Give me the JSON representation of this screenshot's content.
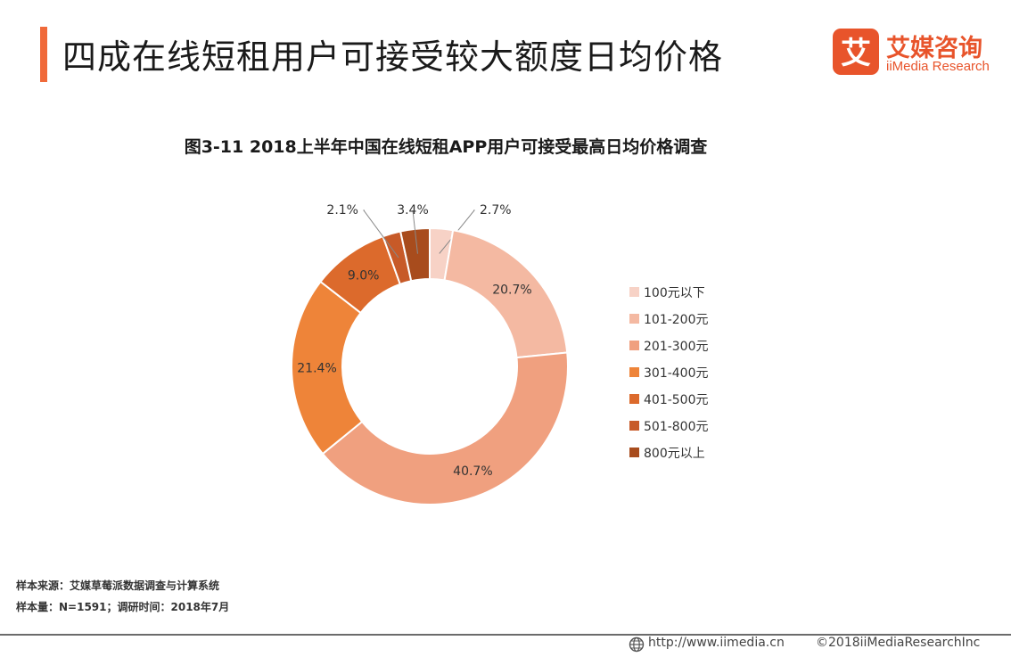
{
  "header": {
    "title": "四成在线短租用户可接受较大额度日均价格",
    "brand": "艾媒咨询",
    "brand_en": "iiMedia Research",
    "logo_glyph": "艾",
    "accent_color": "#f06a3a",
    "brand_color": "#e8542b"
  },
  "chart_data": {
    "type": "pie",
    "style": "donut",
    "title": "图3-11 2018上半年中国在线短租APP用户可接受最高日均价格调查",
    "legend_position": "right",
    "slices": [
      {
        "label": "100元以下",
        "value": 2.7,
        "display": "2.7%",
        "color": "#f7d2c6"
      },
      {
        "label": "101-200元",
        "value": 20.7,
        "display": "20.7%",
        "color": "#f4b9a2"
      },
      {
        "label": "201-300元",
        "value": 40.7,
        "display": "40.7%",
        "color": "#f0a07f"
      },
      {
        "label": "301-400元",
        "value": 21.4,
        "display": "21.4%",
        "color": "#ee8439"
      },
      {
        "label": "401-500元",
        "value": 9.0,
        "display": "9.0%",
        "color": "#dc6a2c"
      },
      {
        "label": "501-800元",
        "value": 2.1,
        "display": "2.1%",
        "color": "#c75a28"
      },
      {
        "label": "800元以上",
        "value": 3.4,
        "display": "3.4%",
        "color": "#a84c1d"
      }
    ]
  },
  "footer": {
    "source": "样本来源：艾媒草莓派数据调查与计算系统",
    "sample": "样本量：N=1591；调研时间：2018年7月",
    "url": "http://www.iimedia.cn",
    "copyright": "©2018iiMediaResearchInc"
  }
}
